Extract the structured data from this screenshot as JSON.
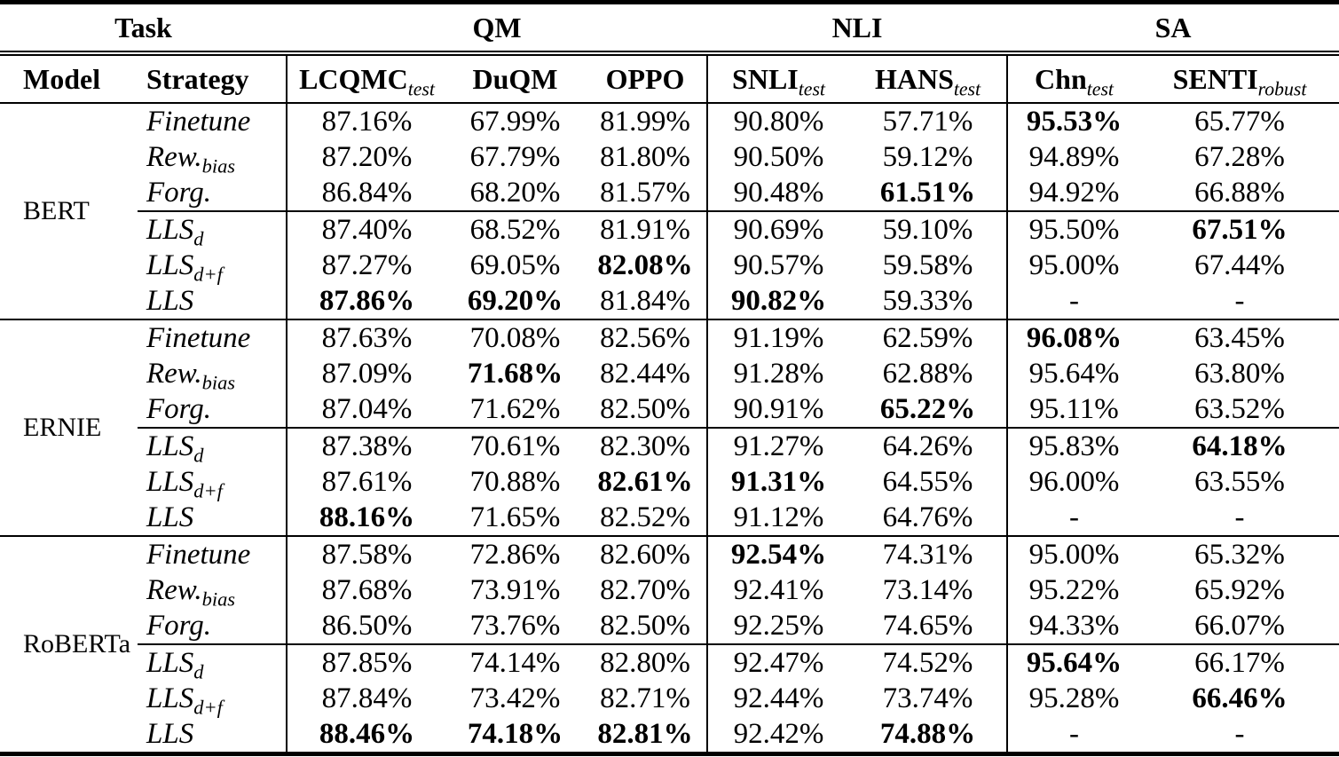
{
  "table": {
    "header_top": [
      {
        "label": "Task"
      },
      {
        "label": "QM"
      },
      {
        "label": "NLI"
      },
      {
        "label": "SA"
      }
    ],
    "columns": [
      {
        "label": "Model",
        "sub": ""
      },
      {
        "label": "Strategy",
        "sub": ""
      },
      {
        "label": "LCQMC",
        "sub": "test"
      },
      {
        "label": "DuQM",
        "sub": ""
      },
      {
        "label": "OPPO",
        "sub": ""
      },
      {
        "label": "SNLI",
        "sub": "test"
      },
      {
        "label": "HANS",
        "sub": "test"
      },
      {
        "label": "Chn",
        "sub": "test"
      },
      {
        "label": "SENTI",
        "sub": "robust"
      }
    ],
    "groups": [
      {
        "model": "BERT",
        "rows": [
          {
            "strategy": {
              "base": "Finetune",
              "sub": ""
            },
            "rule_above": false,
            "values": [
              "87.16%",
              "67.99%",
              "81.99%",
              "90.80%",
              "57.71%",
              "95.53%",
              "65.77%"
            ],
            "bold": [
              5
            ]
          },
          {
            "strategy": {
              "base": "Rew.",
              "sub": "bias"
            },
            "rule_above": false,
            "values": [
              "87.20%",
              "67.79%",
              "81.80%",
              "90.50%",
              "59.12%",
              "94.89%",
              "67.28%"
            ],
            "bold": []
          },
          {
            "strategy": {
              "base": "Forg.",
              "sub": ""
            },
            "rule_above": false,
            "values": [
              "86.84%",
              "68.20%",
              "81.57%",
              "90.48%",
              "61.51%",
              "94.92%",
              "66.88%"
            ],
            "bold": [
              4
            ]
          },
          {
            "strategy": {
              "base": "LLS",
              "sub": "d"
            },
            "rule_above": true,
            "values": [
              "87.40%",
              "68.52%",
              "81.91%",
              "90.69%",
              "59.10%",
              "95.50%",
              "67.51%"
            ],
            "bold": [
              6
            ]
          },
          {
            "strategy": {
              "base": "LLS",
              "sub": "d+f"
            },
            "rule_above": false,
            "values": [
              "87.27%",
              "69.05%",
              "82.08%",
              "90.57%",
              "59.58%",
              "95.00%",
              "67.44%"
            ],
            "bold": [
              2
            ]
          },
          {
            "strategy": {
              "base": "LLS",
              "sub": ""
            },
            "rule_above": false,
            "values": [
              "87.86%",
              "69.20%",
              "81.84%",
              "90.82%",
              "59.33%",
              "-",
              "-"
            ],
            "bold": [
              0,
              1,
              3
            ]
          }
        ]
      },
      {
        "model": "ERNIE",
        "rows": [
          {
            "strategy": {
              "base": "Finetune",
              "sub": ""
            },
            "rule_above": false,
            "values": [
              "87.63%",
              "70.08%",
              "82.56%",
              "91.19%",
              "62.59%",
              "96.08%",
              "63.45%"
            ],
            "bold": [
              5
            ]
          },
          {
            "strategy": {
              "base": "Rew.",
              "sub": "bias"
            },
            "rule_above": false,
            "values": [
              "87.09%",
              "71.68%",
              "82.44%",
              "91.28%",
              "62.88%",
              "95.64%",
              "63.80%"
            ],
            "bold": [
              1
            ]
          },
          {
            "strategy": {
              "base": "Forg.",
              "sub": ""
            },
            "rule_above": false,
            "values": [
              "87.04%",
              "71.62%",
              "82.50%",
              "90.91%",
              "65.22%",
              "95.11%",
              "63.52%"
            ],
            "bold": [
              4
            ]
          },
          {
            "strategy": {
              "base": "LLS",
              "sub": "d"
            },
            "rule_above": true,
            "values": [
              "87.38%",
              "70.61%",
              "82.30%",
              "91.27%",
              "64.26%",
              "95.83%",
              "64.18%"
            ],
            "bold": [
              6
            ]
          },
          {
            "strategy": {
              "base": "LLS",
              "sub": "d+f"
            },
            "rule_above": false,
            "values": [
              "87.61%",
              "70.88%",
              "82.61%",
              "91.31%",
              "64.55%",
              "96.00%",
              "63.55%"
            ],
            "bold": [
              2,
              3
            ]
          },
          {
            "strategy": {
              "base": "LLS",
              "sub": ""
            },
            "rule_above": false,
            "values": [
              "88.16%",
              "71.65%",
              "82.52%",
              "91.12%",
              "64.76%",
              "-",
              "-"
            ],
            "bold": [
              0
            ]
          }
        ]
      },
      {
        "model": "RoBERTa",
        "rows": [
          {
            "strategy": {
              "base": "Finetune",
              "sub": ""
            },
            "rule_above": false,
            "values": [
              "87.58%",
              "72.86%",
              "82.60%",
              "92.54%",
              "74.31%",
              "95.00%",
              "65.32%"
            ],
            "bold": [
              3
            ]
          },
          {
            "strategy": {
              "base": "Rew.",
              "sub": "bias"
            },
            "rule_above": false,
            "values": [
              "87.68%",
              "73.91%",
              "82.70%",
              "92.41%",
              "73.14%",
              "95.22%",
              "65.92%"
            ],
            "bold": []
          },
          {
            "strategy": {
              "base": "Forg.",
              "sub": ""
            },
            "rule_above": false,
            "values": [
              "86.50%",
              "73.76%",
              "82.50%",
              "92.25%",
              "74.65%",
              "94.33%",
              "66.07%"
            ],
            "bold": []
          },
          {
            "strategy": {
              "base": "LLS",
              "sub": "d"
            },
            "rule_above": true,
            "values": [
              "87.85%",
              "74.14%",
              "82.80%",
              "92.47%",
              "74.52%",
              "95.64%",
              "66.17%"
            ],
            "bold": [
              5
            ]
          },
          {
            "strategy": {
              "base": "LLS",
              "sub": "d+f"
            },
            "rule_above": false,
            "values": [
              "87.84%",
              "73.42%",
              "82.71%",
              "92.44%",
              "73.74%",
              "95.28%",
              "66.46%"
            ],
            "bold": [
              6
            ]
          },
          {
            "strategy": {
              "base": "LLS",
              "sub": ""
            },
            "rule_above": false,
            "values": [
              "88.46%",
              "74.18%",
              "82.81%",
              "92.42%",
              "74.88%",
              "-",
              "-"
            ],
            "bold": [
              0,
              1,
              2,
              4
            ]
          }
        ]
      }
    ]
  }
}
